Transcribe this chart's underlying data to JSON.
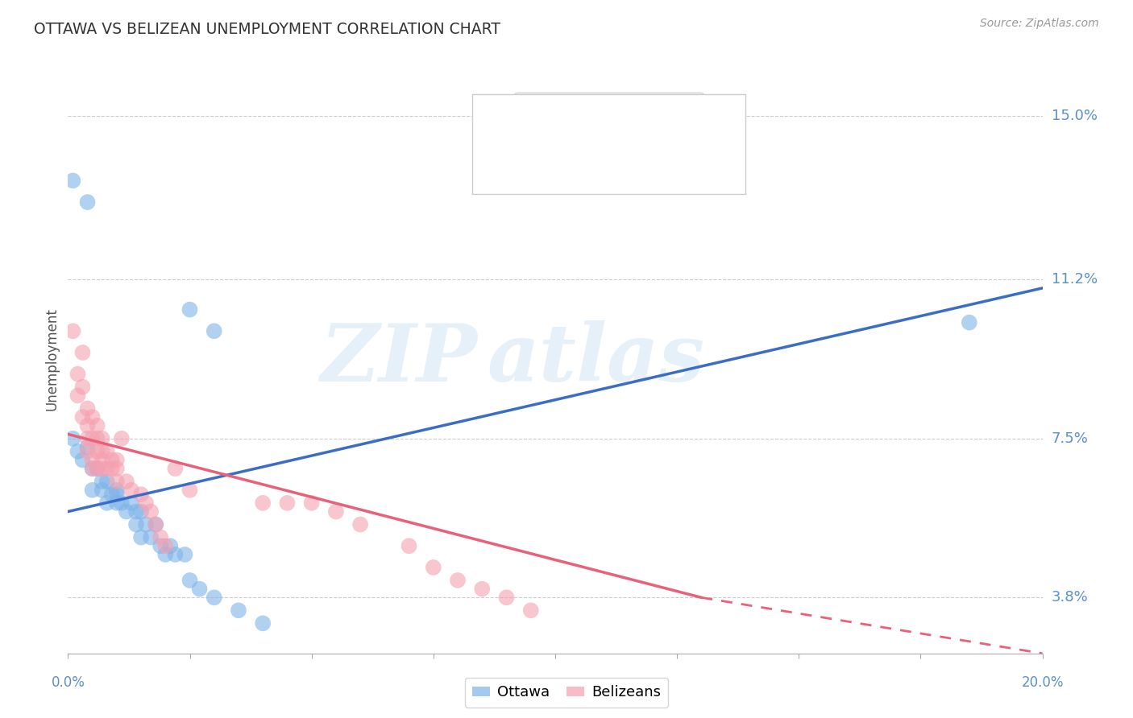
{
  "title": "OTTAWA VS BELIZEAN UNEMPLOYMENT CORRELATION CHART",
  "source": "Source: ZipAtlas.com",
  "ylabel": "Unemployment",
  "ytick_vals": [
    0.038,
    0.075,
    0.112,
    0.15
  ],
  "ytick_labels": [
    "3.8%",
    "7.5%",
    "11.2%",
    "15.0%"
  ],
  "xlim": [
    0.0,
    0.2
  ],
  "ylim": [
    0.025,
    0.162
  ],
  "watermark_zip": "ZIP",
  "watermark_atlas": "atlas",
  "ottawa_color": "#7EB3E8",
  "belizean_color": "#F4A0B0",
  "ottawa_line_color": "#3A6DC8",
  "belizean_line_color": "#E8607A",
  "background_color": "#FFFFFF",
  "grid_color": "#CCCCCC",
  "title_color": "#333333",
  "axis_label_color": "#5B8FCC",
  "ottawa_points": [
    [
      0.001,
      0.135
    ],
    [
      0.004,
      0.13
    ],
    [
      0.025,
      0.105
    ],
    [
      0.03,
      0.1
    ],
    [
      0.001,
      0.075
    ],
    [
      0.002,
      0.072
    ],
    [
      0.003,
      0.07
    ],
    [
      0.004,
      0.073
    ],
    [
      0.005,
      0.068
    ],
    [
      0.005,
      0.063
    ],
    [
      0.006,
      0.068
    ],
    [
      0.007,
      0.063
    ],
    [
      0.007,
      0.065
    ],
    [
      0.008,
      0.065
    ],
    [
      0.008,
      0.06
    ],
    [
      0.009,
      0.062
    ],
    [
      0.01,
      0.06
    ],
    [
      0.01,
      0.063
    ],
    [
      0.01,
      0.062
    ],
    [
      0.011,
      0.06
    ],
    [
      0.012,
      0.058
    ],
    [
      0.013,
      0.06
    ],
    [
      0.014,
      0.058
    ],
    [
      0.014,
      0.055
    ],
    [
      0.015,
      0.058
    ],
    [
      0.015,
      0.052
    ],
    [
      0.016,
      0.055
    ],
    [
      0.017,
      0.052
    ],
    [
      0.018,
      0.055
    ],
    [
      0.019,
      0.05
    ],
    [
      0.02,
      0.048
    ],
    [
      0.021,
      0.05
    ],
    [
      0.022,
      0.048
    ],
    [
      0.024,
      0.048
    ],
    [
      0.025,
      0.042
    ],
    [
      0.027,
      0.04
    ],
    [
      0.03,
      0.038
    ],
    [
      0.035,
      0.035
    ],
    [
      0.04,
      0.032
    ],
    [
      0.185,
      0.102
    ]
  ],
  "belizean_points": [
    [
      0.001,
      0.1
    ],
    [
      0.002,
      0.09
    ],
    [
      0.002,
      0.085
    ],
    [
      0.003,
      0.095
    ],
    [
      0.003,
      0.087
    ],
    [
      0.003,
      0.08
    ],
    [
      0.004,
      0.082
    ],
    [
      0.004,
      0.078
    ],
    [
      0.004,
      0.075
    ],
    [
      0.004,
      0.072
    ],
    [
      0.005,
      0.08
    ],
    [
      0.005,
      0.075
    ],
    [
      0.005,
      0.07
    ],
    [
      0.005,
      0.068
    ],
    [
      0.006,
      0.078
    ],
    [
      0.006,
      0.075
    ],
    [
      0.006,
      0.072
    ],
    [
      0.006,
      0.068
    ],
    [
      0.007,
      0.075
    ],
    [
      0.007,
      0.072
    ],
    [
      0.007,
      0.07
    ],
    [
      0.007,
      0.068
    ],
    [
      0.008,
      0.072
    ],
    [
      0.008,
      0.068
    ],
    [
      0.009,
      0.07
    ],
    [
      0.009,
      0.068
    ],
    [
      0.01,
      0.07
    ],
    [
      0.01,
      0.065
    ],
    [
      0.01,
      0.068
    ],
    [
      0.011,
      0.075
    ],
    [
      0.012,
      0.065
    ],
    [
      0.013,
      0.063
    ],
    [
      0.015,
      0.062
    ],
    [
      0.016,
      0.06
    ],
    [
      0.017,
      0.058
    ],
    [
      0.018,
      0.055
    ],
    [
      0.019,
      0.052
    ],
    [
      0.02,
      0.05
    ],
    [
      0.022,
      0.068
    ],
    [
      0.025,
      0.063
    ],
    [
      0.04,
      0.06
    ],
    [
      0.045,
      0.06
    ],
    [
      0.05,
      0.06
    ],
    [
      0.055,
      0.058
    ],
    [
      0.06,
      0.055
    ],
    [
      0.07,
      0.05
    ],
    [
      0.075,
      0.045
    ],
    [
      0.08,
      0.042
    ],
    [
      0.085,
      0.04
    ],
    [
      0.09,
      0.038
    ],
    [
      0.095,
      0.035
    ]
  ],
  "ottawa_line": {
    "x0": 0.0,
    "y0": 0.058,
    "x1": 0.2,
    "y1": 0.11
  },
  "belizean_line_solid": {
    "x0": 0.0,
    "y0": 0.076,
    "x1": 0.13,
    "y1": 0.038
  },
  "belizean_line_dashed": {
    "x0": 0.13,
    "y0": 0.038,
    "x1": 0.2,
    "y1": 0.025
  }
}
